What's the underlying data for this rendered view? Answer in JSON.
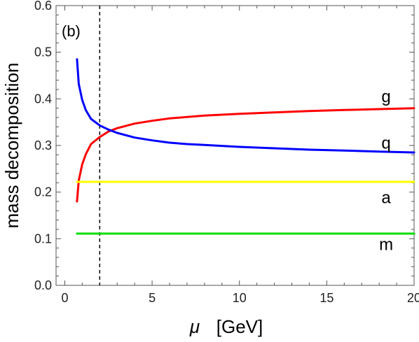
{
  "chart_data": {
    "type": "line",
    "panel_label": "(b)",
    "xlabel": "μ",
    "xunit": "[GeV]",
    "ylabel": "mass decomposition",
    "xlim": [
      -0.5,
      20
    ],
    "ylim": [
      0.0,
      0.6
    ],
    "xticks": [
      0,
      5,
      10,
      15,
      20
    ],
    "yticks": [
      0.0,
      0.1,
      0.2,
      0.3,
      0.4,
      0.5,
      0.6
    ],
    "ytick_labels": [
      "0.0",
      "0.1",
      "0.2",
      "0.3",
      "0.4",
      "0.5",
      "0.6"
    ],
    "grid": false,
    "reference_line": {
      "x": 2,
      "style": "dashed"
    },
    "series": [
      {
        "name": "g",
        "color": "#ff0000",
        "x": [
          0.7,
          0.8,
          1.0,
          1.2,
          1.5,
          2.0,
          2.5,
          3.0,
          4.0,
          5.0,
          6.0,
          7.0,
          8.0,
          10.0,
          12.0,
          14.0,
          16.0,
          18.0,
          20.0
        ],
        "y": [
          0.18,
          0.225,
          0.26,
          0.281,
          0.303,
          0.318,
          0.33,
          0.337,
          0.347,
          0.353,
          0.358,
          0.361,
          0.364,
          0.368,
          0.371,
          0.374,
          0.376,
          0.378,
          0.38
        ]
      },
      {
        "name": "q",
        "color": "#0000ff",
        "x": [
          0.7,
          0.8,
          1.0,
          1.2,
          1.5,
          2.0,
          2.5,
          3.0,
          4.0,
          5.0,
          6.0,
          7.0,
          8.0,
          10.0,
          12.0,
          14.0,
          16.0,
          18.0,
          20.0
        ],
        "y": [
          0.485,
          0.432,
          0.397,
          0.376,
          0.357,
          0.343,
          0.334,
          0.327,
          0.317,
          0.311,
          0.306,
          0.303,
          0.301,
          0.297,
          0.294,
          0.291,
          0.289,
          0.287,
          0.285
        ]
      },
      {
        "name": "a",
        "color": "#ffff00",
        "x": [
          0.7,
          20.0
        ],
        "y": [
          0.222,
          0.222
        ]
      },
      {
        "name": "m",
        "color": "#00dd00",
        "x": [
          0.7,
          20.0
        ],
        "y": [
          0.111,
          0.111
        ]
      }
    ],
    "series_labels": [
      {
        "text": "g",
        "x": 18.4,
        "y": 0.393
      },
      {
        "text": "q",
        "x": 18.4,
        "y": 0.293
      },
      {
        "text": "a",
        "x": 18.4,
        "y": 0.176
      },
      {
        "text": "m",
        "x": 18.4,
        "y": 0.076
      }
    ]
  }
}
